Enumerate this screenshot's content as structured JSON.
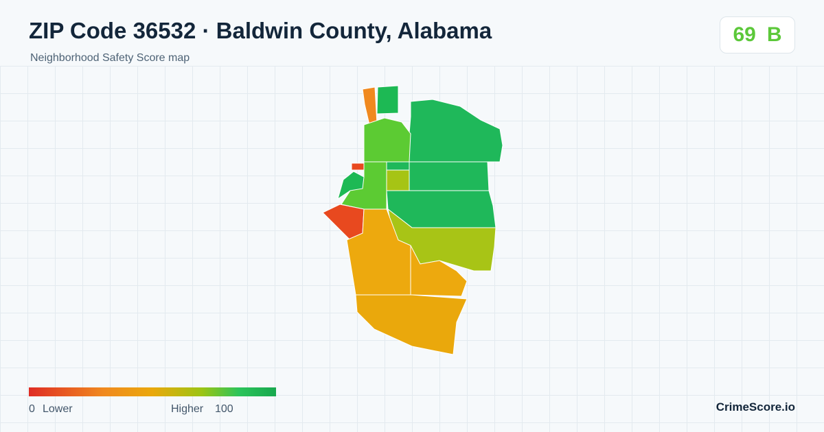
{
  "header": {
    "title": "ZIP Code 36532 · Baldwin County, Alabama",
    "subtitle": "Neighborhood Safety Score map"
  },
  "score": {
    "value": "69",
    "grade": "B"
  },
  "legend": {
    "min": "0",
    "min_label": "Lower",
    "max_label": "Higher",
    "max": "100"
  },
  "brand": "CrimeScore.io"
}
